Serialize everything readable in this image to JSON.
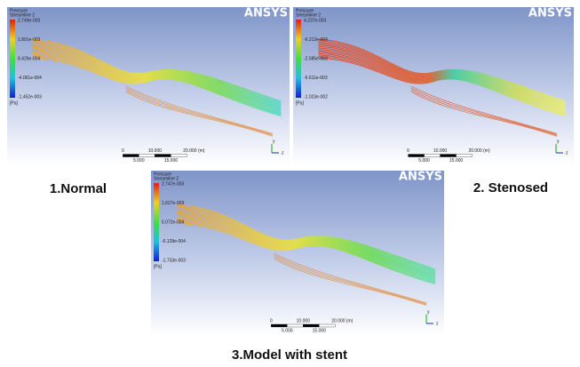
{
  "panels": [
    {
      "legend_title": [
        "Pressure",
        "Streamline 2"
      ],
      "legend_values": [
        "2.749e-003",
        "1.891e-003",
        "8.426e-004",
        "-4.061e-004",
        "-1.452e-003"
      ],
      "unit": "[Pa]",
      "logo": "ANSYS",
      "scale_top": [
        "0",
        "10.000",
        "20.000 (m)"
      ],
      "scale_bottom": [
        "5.000",
        "15.000"
      ],
      "axes": [
        "y",
        "z"
      ],
      "caption": "1.Normal"
    },
    {
      "legend_title": [
        "Pressure",
        "Streamline 2"
      ],
      "legend_values": [
        "4.237e-003",
        "-6.212e-004",
        "-2.585e-003",
        "-6.611e-003",
        "-1.023e-002"
      ],
      "unit": "[Pa]",
      "logo": "ANSYS",
      "scale_top": [
        "0",
        "10.000",
        "20.000 (m)"
      ],
      "scale_bottom": [
        "5.000",
        "15.000"
      ],
      "axes": [
        "y",
        "z"
      ],
      "caption": "2. Stenosed"
    },
    {
      "legend_title": [
        "Pressure",
        "Streamline 2"
      ],
      "legend_values": [
        "2.747e-003",
        "1.627e-003",
        "5.072e-004",
        "-6.128e-004",
        "-1.733e-003"
      ],
      "unit": "[Pa]",
      "logo": "ANSYS",
      "scale_top": [
        "0",
        "10.000",
        "20.000 (m)"
      ],
      "scale_bottom": [
        "5.000",
        "15.000"
      ],
      "axes": [
        "y",
        "z"
      ],
      "caption": "3.Model with stent"
    }
  ]
}
